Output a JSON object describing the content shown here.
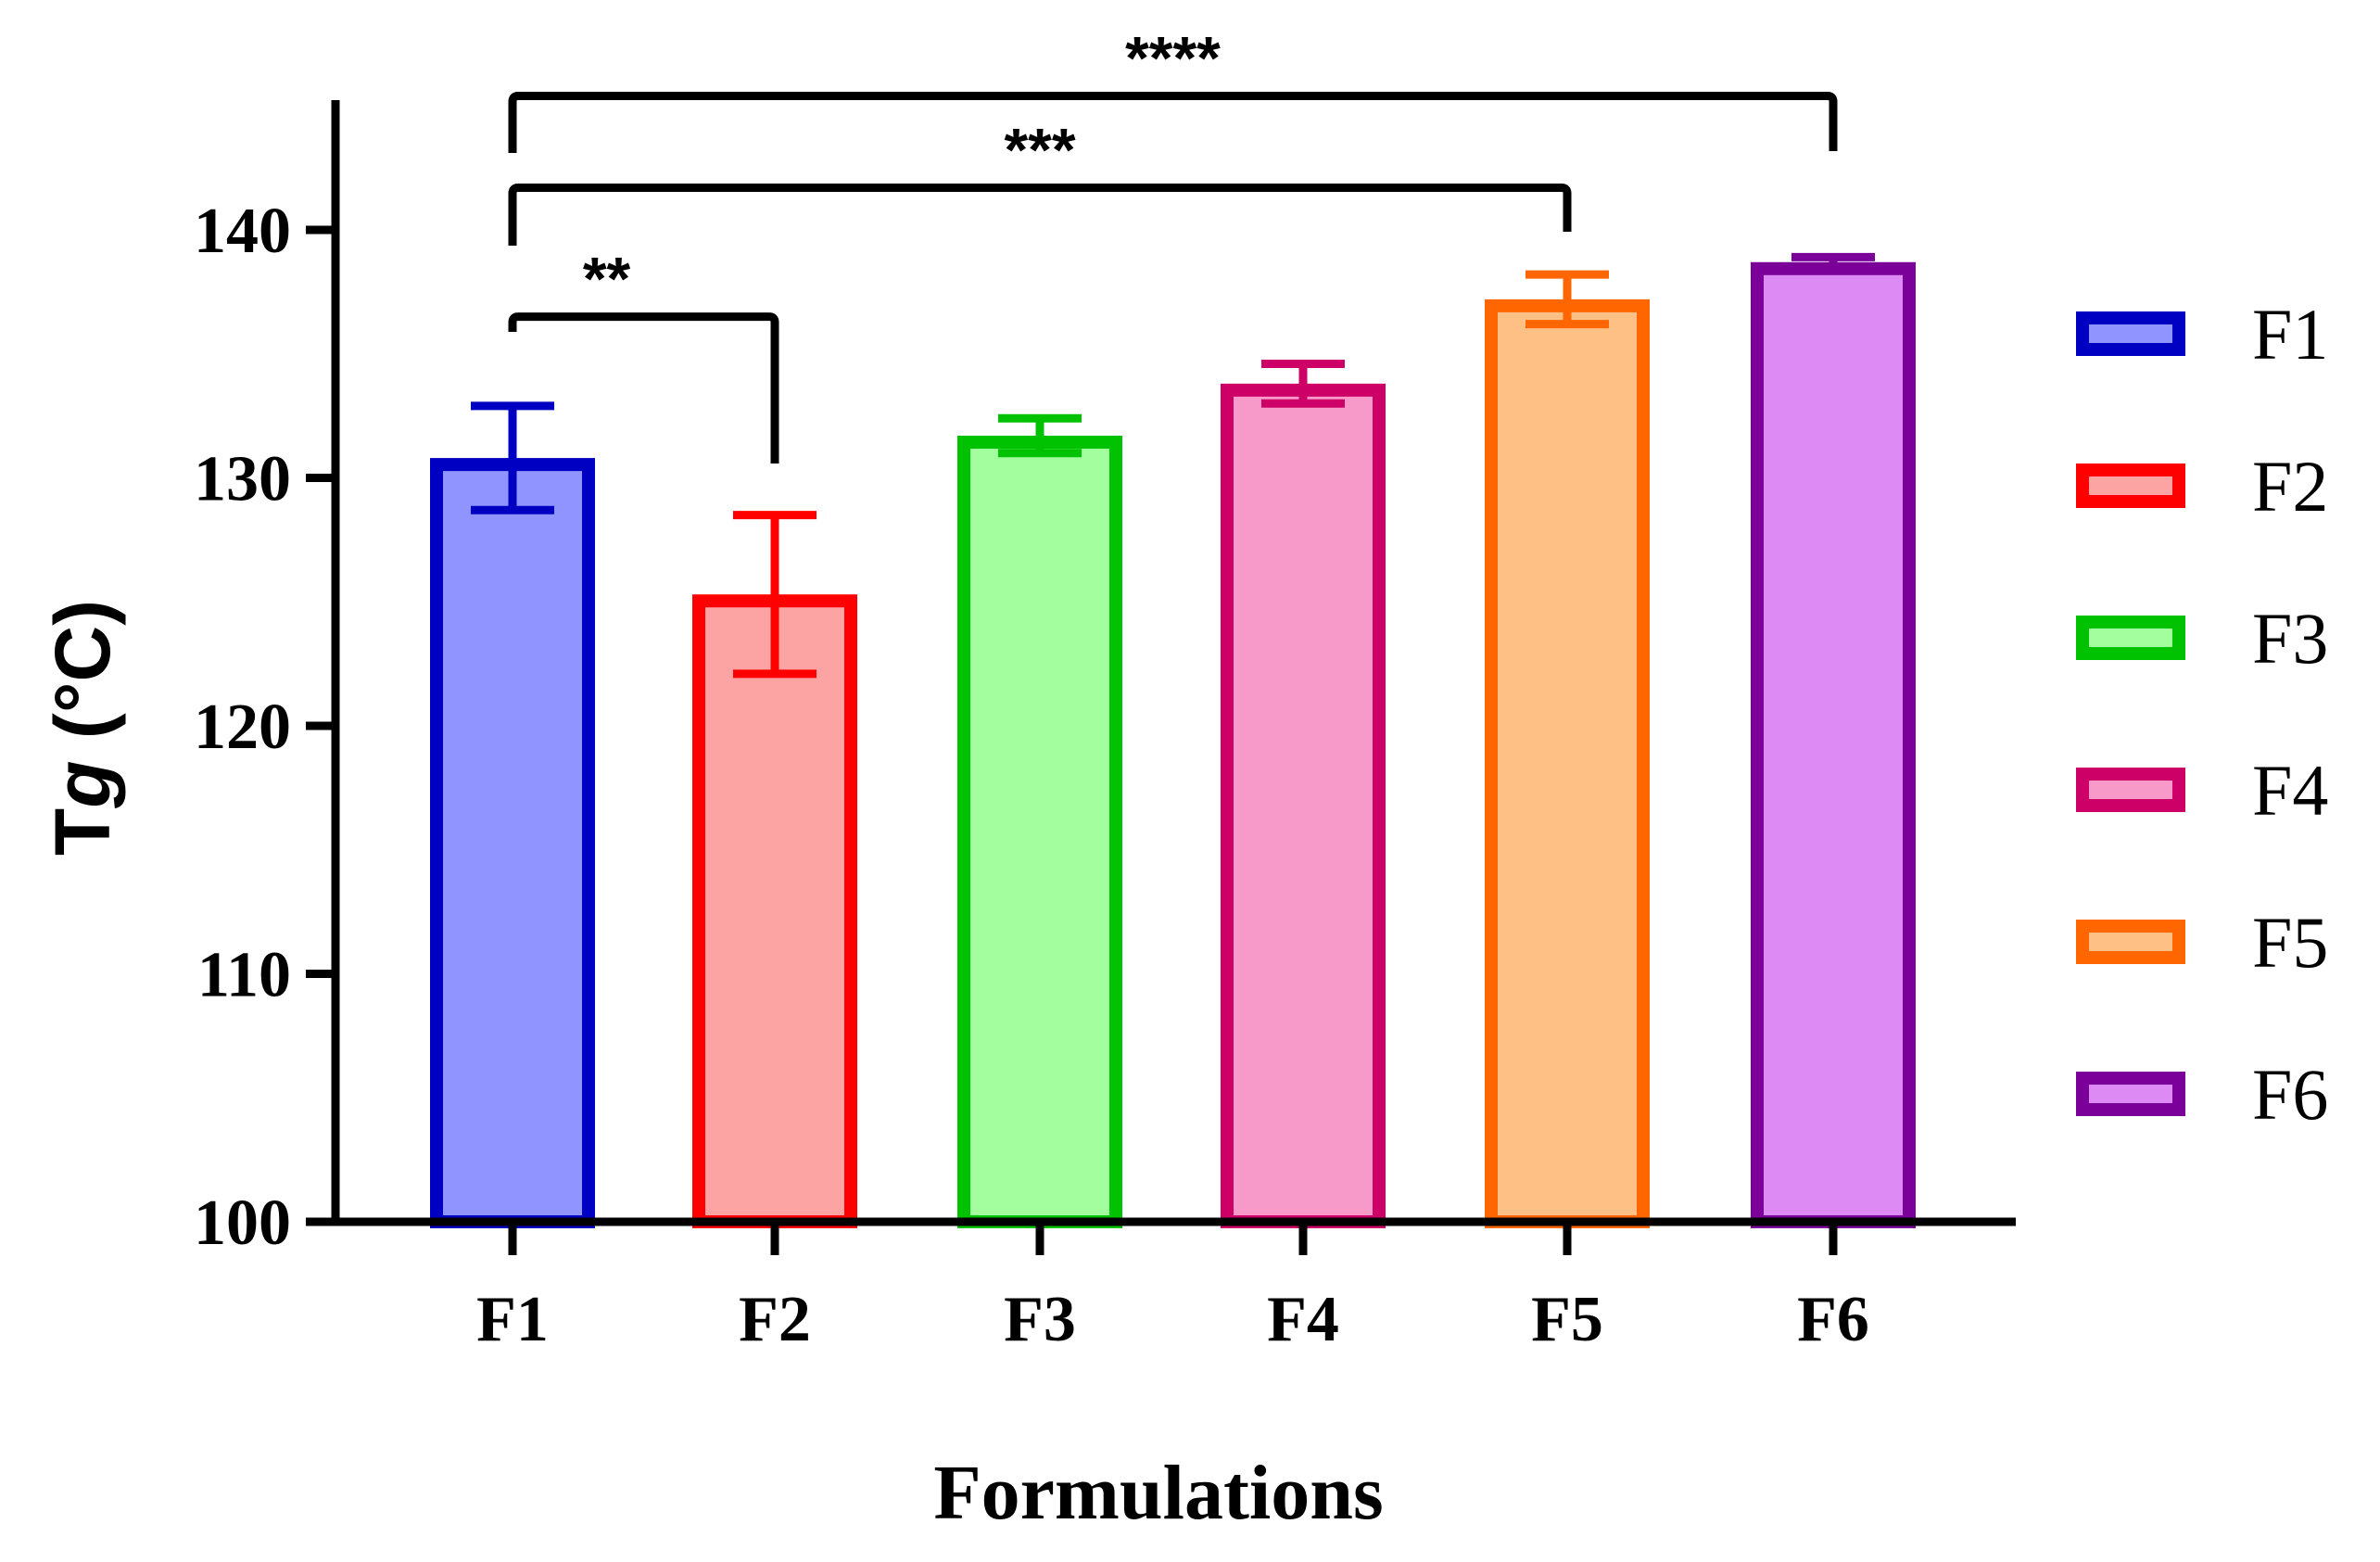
{
  "chart_data": {
    "type": "bar",
    "title": "",
    "xlabel": "Formulations",
    "ylabel": {
      "prefix": "T",
      "italic": "g",
      "suffix": " (°C)"
    },
    "ylim": [
      100,
      145
    ],
    "yticks": [
      100,
      110,
      120,
      130,
      140
    ],
    "grid": false,
    "legend_position": "right",
    "categories": [
      "F1",
      "F2",
      "F3",
      "F4",
      "F5",
      "F6"
    ],
    "values": [
      130.8,
      125.3,
      131.7,
      133.8,
      137.2,
      138.7
    ],
    "errors": [
      2.1,
      3.2,
      0.7,
      0.8,
      1.0,
      0.2
    ],
    "colors": {
      "F1": {
        "stroke": "#0000c2",
        "fill": "#8f94ff"
      },
      "F2": {
        "stroke": "#ff0000",
        "fill": "#fca3a3"
      },
      "F3": {
        "stroke": "#00c200",
        "fill": "#a3ff9e"
      },
      "F4": {
        "stroke": "#cc0066",
        "fill": "#f799c9"
      },
      "F5": {
        "stroke": "#ff6600",
        "fill": "#ffc085"
      },
      "F6": {
        "stroke": "#7a0099",
        "fill": "#dd8af5"
      }
    },
    "legend": [
      "F1",
      "F2",
      "F3",
      "F4",
      "F5",
      "F6"
    ],
    "significance": [
      {
        "from": "F1",
        "to": "F2",
        "label": "**",
        "level": 136.5
      },
      {
        "from": "F1",
        "to": "F5",
        "label": "***",
        "level": 141.7
      },
      {
        "from": "F1",
        "to": "F6",
        "label": "****",
        "level": 145.4
      }
    ]
  }
}
